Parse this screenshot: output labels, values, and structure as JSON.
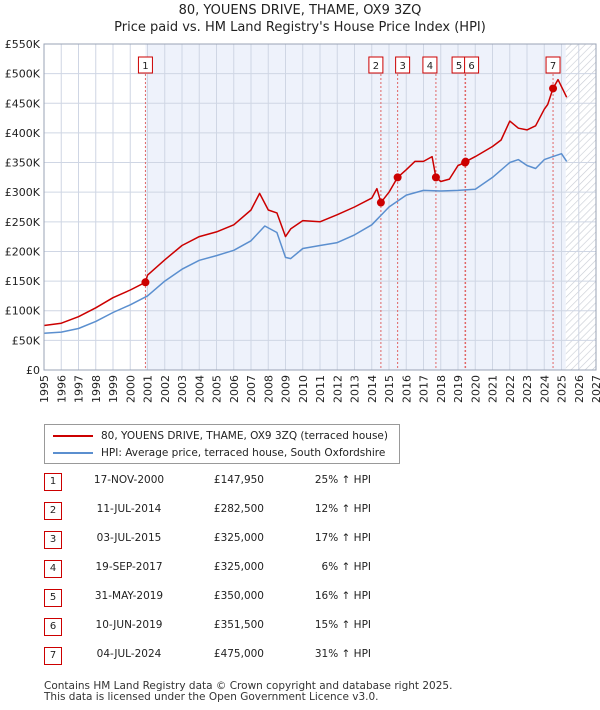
{
  "title_line1": "80, YOUENS DRIVE, THAME, OX9 3ZQ",
  "title_line2": "Price paid vs. HM Land Registry's House Price Index (HPI)",
  "colors": {
    "property": "#cc0000",
    "hpi": "#5b8fcf",
    "shade": "#e8eefa",
    "grid": "#cfd6e4"
  },
  "legend": {
    "property_label": "80, YOUENS DRIVE, THAME, OX9 3ZQ (terraced house)",
    "hpi_label": "HPI: Average price, terraced house, South Oxfordshire"
  },
  "sales": [
    {
      "num": "1",
      "date": "17-NOV-2000",
      "price": "£147,950",
      "hpi": "25% ↑ HPI"
    },
    {
      "num": "2",
      "date": "11-JUL-2014",
      "price": "£282,500",
      "hpi": "12% ↑ HPI"
    },
    {
      "num": "3",
      "date": "03-JUL-2015",
      "price": "£325,000",
      "hpi": "17% ↑ HPI"
    },
    {
      "num": "4",
      "date": "19-SEP-2017",
      "price": "£325,000",
      "hpi": "6% ↑ HPI"
    },
    {
      "num": "5",
      "date": "31-MAY-2019",
      "price": "£350,000",
      "hpi": "16% ↑ HPI"
    },
    {
      "num": "6",
      "date": "10-JUN-2019",
      "price": "£351,500",
      "hpi": "15% ↑ HPI"
    },
    {
      "num": "7",
      "date": "04-JUL-2024",
      "price": "£475,000",
      "hpi": "31% ↑ HPI"
    }
  ],
  "footer_line1": "Contains HM Land Registry data © Crown copyright and database right 2025.",
  "footer_line2": "This data is licensed under the Open Government Licence v3.0.",
  "chart_data": {
    "type": "line",
    "title": "80, YOUENS DRIVE, THAME, OX9 3ZQ — Price paid vs. HM Land Registry's House Price Index (HPI)",
    "xlabel": "",
    "ylabel": "",
    "xlim": [
      1995,
      2027
    ],
    "ylim": [
      0,
      550000
    ],
    "x_ticks": [
      1995,
      1996,
      1997,
      1998,
      1999,
      2000,
      2001,
      2002,
      2003,
      2004,
      2005,
      2006,
      2007,
      2008,
      2009,
      2010,
      2011,
      2012,
      2013,
      2014,
      2015,
      2016,
      2017,
      2018,
      2019,
      2020,
      2021,
      2022,
      2023,
      2024,
      2025,
      2026,
      2027
    ],
    "y_ticks": [
      {
        "value": 0,
        "label": "£0"
      },
      {
        "value": 50000,
        "label": "£50K"
      },
      {
        "value": 100000,
        "label": "£100K"
      },
      {
        "value": 150000,
        "label": "£150K"
      },
      {
        "value": 200000,
        "label": "£200K"
      },
      {
        "value": 250000,
        "label": "£250K"
      },
      {
        "value": 300000,
        "label": "£300K"
      },
      {
        "value": 350000,
        "label": "£350K"
      },
      {
        "value": 400000,
        "label": "£400K"
      },
      {
        "value": 450000,
        "label": "£450K"
      },
      {
        "value": 500000,
        "label": "£500K"
      },
      {
        "value": 550000,
        "label": "£550K"
      }
    ],
    "shaded_regions": [
      {
        "from": 2025.25,
        "to": 2027,
        "hatched": true
      }
    ],
    "series": [
      {
        "name": "80, YOUENS DRIVE, THAME, OX9 3ZQ (terraced house)",
        "color": "#cc0000",
        "x": [
          1995,
          1996,
          1997,
          1998,
          1999,
          2000,
          2000.88,
          2001,
          2002,
          2003,
          2004,
          2005,
          2006,
          2007,
          2007.5,
          2008,
          2008.5,
          2009,
          2009.3,
          2010,
          2011,
          2012,
          2013,
          2014,
          2014.3,
          2014.53,
          2015,
          2015.5,
          2016,
          2016.5,
          2017,
          2017.5,
          2017.72,
          2018,
          2018.5,
          2019,
          2019.41,
          2019.44,
          2020,
          2021,
          2021.5,
          2022,
          2022.5,
          2023,
          2023.5,
          2024,
          2024.2,
          2024.51,
          2024.8,
          2025,
          2025.3
        ],
        "y": [
          75000,
          79000,
          90000,
          105000,
          122000,
          135000,
          147950,
          160000,
          186000,
          210000,
          225000,
          233000,
          245000,
          270000,
          298000,
          270000,
          265000,
          225000,
          238000,
          252000,
          250000,
          262000,
          275000,
          290000,
          306000,
          282500,
          300000,
          325000,
          338000,
          352000,
          352000,
          360000,
          325000,
          318000,
          322000,
          345000,
          350000,
          351500,
          360000,
          377000,
          388000,
          420000,
          408000,
          405000,
          412000,
          440000,
          448000,
          475000,
          490000,
          478000,
          460000
        ]
      },
      {
        "name": "HPI: Average price, terraced house, South Oxfordshire",
        "color": "#5b8fcf",
        "x": [
          1995,
          1996,
          1997,
          1998,
          1999,
          2000,
          2001,
          2002,
          2003,
          2004,
          2005,
          2006,
          2007,
          2007.8,
          2008.5,
          2009,
          2009.3,
          2010,
          2011,
          2012,
          2013,
          2014,
          2015,
          2016,
          2017,
          2018,
          2019,
          2020,
          2021,
          2022,
          2022.5,
          2023,
          2023.5,
          2024,
          2024.5,
          2025,
          2025.3
        ],
        "y": [
          62000,
          64000,
          70000,
          82000,
          97000,
          110000,
          125000,
          150000,
          170000,
          185000,
          193000,
          202000,
          218000,
          243000,
          232000,
          190000,
          188000,
          205000,
          210000,
          215000,
          228000,
          245000,
          275000,
          295000,
          303000,
          302000,
          303000,
          305000,
          325000,
          350000,
          355000,
          345000,
          340000,
          355000,
          360000,
          365000,
          352000
        ]
      }
    ],
    "sales": [
      {
        "num": "1",
        "x": 2000.88,
        "y": 147950
      },
      {
        "num": "2",
        "x": 2014.53,
        "y": 282500
      },
      {
        "num": "3",
        "x": 2015.5,
        "y": 325000
      },
      {
        "num": "4",
        "x": 2017.72,
        "y": 325000
      },
      {
        "num": "5",
        "x": 2019.41,
        "y": 350000
      },
      {
        "num": "6",
        "x": 2019.44,
        "y": 351500
      },
      {
        "num": "7",
        "x": 2024.51,
        "y": 475000
      }
    ],
    "marker_labels": [
      {
        "num": "1",
        "x": 2000.88
      },
      {
        "num": "2",
        "x": 2014.53
      },
      {
        "num": "3",
        "x": 2015.5
      },
      {
        "num": "4",
        "x": 2017.72
      },
      {
        "num": "5",
        "x": 2019.41
      },
      {
        "num": "6",
        "x": 2019.44
      },
      {
        "num": "7",
        "x": 2024.51
      }
    ]
  }
}
